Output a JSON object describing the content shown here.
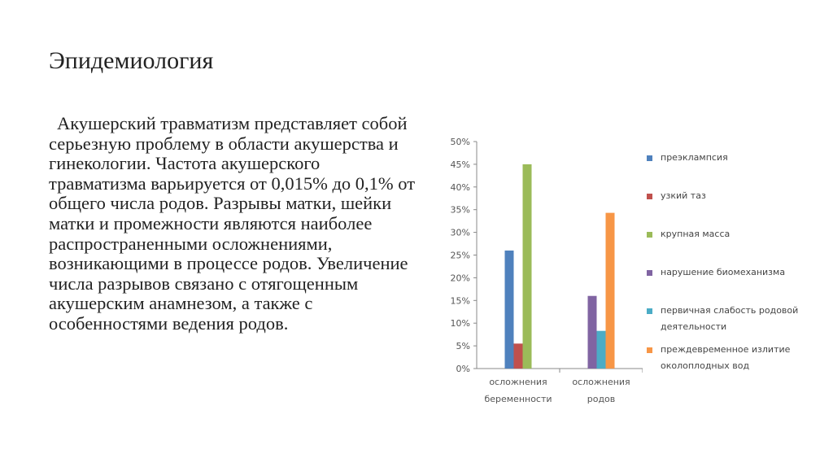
{
  "slide": {
    "title": "Эпидемиология",
    "body": "Акушерский травматизм представляет собой серьезную проблему в области акушерства и гинекологии. Частота акушерского травматизма варьируется от 0,015% до 0,1% от общего числа родов. Разрывы матки, шейки матки и промежности являются наиболее распространенными осложнениями, возникающими в процессе родов. Увеличение числа разрывов связано с отягощенным акушерским анамнезом, а также с особенностями ведения родов."
  },
  "chart_data": {
    "type": "bar",
    "categories": [
      "осложнения беременности",
      "осложнения родов"
    ],
    "y_ticks": [
      "0%",
      "5%",
      "10%",
      "15%",
      "20%",
      "25%",
      "30%",
      "35%",
      "40%",
      "45%",
      "50%"
    ],
    "ylim": [
      0,
      50
    ],
    "legend_position": "right",
    "grid": false,
    "series": [
      {
        "name": "преэклампсия",
        "color": "#4f81bd",
        "values": [
          26,
          null
        ]
      },
      {
        "name": "узкий таз",
        "color": "#c0504d",
        "values": [
          5.5,
          null
        ]
      },
      {
        "name": "крупная масса",
        "color": "#9bbb59",
        "values": [
          45,
          null
        ]
      },
      {
        "name": "нарушение биомеханизма",
        "color": "#8064a2",
        "values": [
          null,
          16
        ]
      },
      {
        "name": "первичная слабость родовой деятельности",
        "color": "#4bacc6",
        "values": [
          null,
          8.3
        ]
      },
      {
        "name": "преждевременное излитие околоплодных вод",
        "color": "#f79646",
        "values": [
          null,
          34.3
        ]
      }
    ]
  }
}
